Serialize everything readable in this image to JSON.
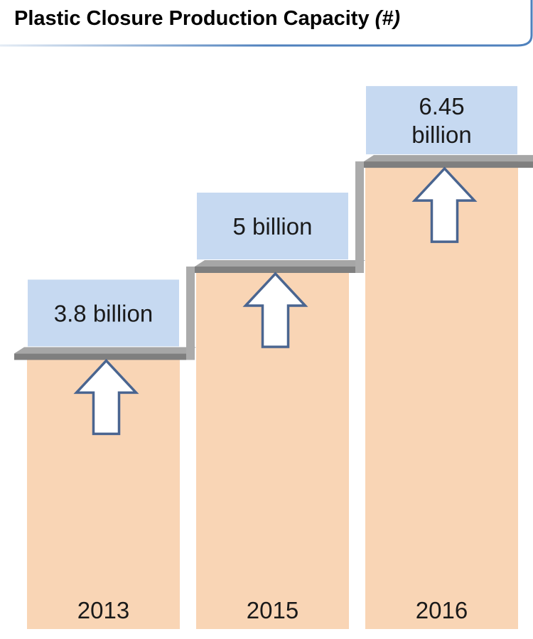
{
  "header": {
    "title": "Plastic Closure Production Capacity",
    "unit": "(#)"
  },
  "colors": {
    "bar": "#F9D5B5",
    "label_box": "#C6D9F1",
    "step": "#7F7F7F",
    "arrow_stroke": "#4A6590",
    "title_line": "#4F81BD"
  },
  "icons": [
    "up-arrow-icon"
  ],
  "chart_data": {
    "type": "bar",
    "title": "Plastic Closure Production Capacity (#)",
    "categories": [
      "2013",
      "2015",
      "2016"
    ],
    "values": [
      3.8,
      5,
      6.45
    ],
    "value_labels": [
      "3.8 billion",
      "5 billion",
      "6.45 billion"
    ],
    "value_label_lines": [
      [
        "3.8 billion"
      ],
      [
        "5 billion"
      ],
      [
        "6.45",
        "billion"
      ]
    ],
    "unit": "billion",
    "xlabel": "",
    "ylabel": "",
    "grid": false,
    "legend": "none"
  }
}
